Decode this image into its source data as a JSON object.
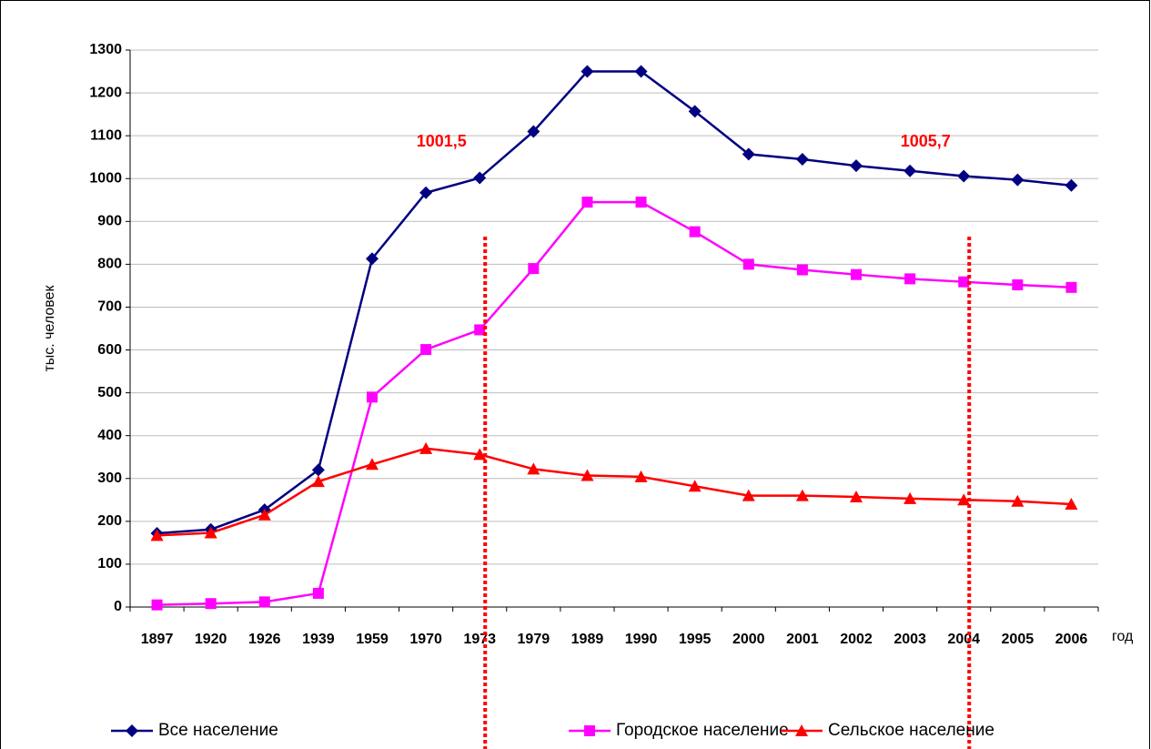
{
  "chart_data": {
    "type": "line",
    "categories": [
      "1897",
      "1920",
      "1926",
      "1939",
      "1959",
      "1970",
      "1973",
      "1979",
      "1989",
      "1990",
      "1995",
      "2000",
      "2001",
      "2002",
      "2003",
      "2004",
      "2005",
      "2006"
    ],
    "series": [
      {
        "name": "Все население",
        "color": "#000080",
        "marker": "diamond",
        "values": [
          172,
          181,
          227,
          320,
          813,
          967,
          1001.5,
          1110,
          1250,
          1250,
          1157,
          1057,
          1045,
          1030,
          1018,
          1005.7,
          997,
          984
        ]
      },
      {
        "name": "Городское население",
        "color": "#ff00ff",
        "marker": "square",
        "values": [
          5,
          8,
          12,
          32,
          490,
          601,
          647,
          790,
          945,
          945,
          876,
          800,
          787,
          776,
          766,
          759,
          752,
          746
        ]
      },
      {
        "name": "Сельское  население",
        "color": "#ff0000",
        "marker": "triangle",
        "values": [
          167,
          173,
          215,
          293,
          333,
          370,
          356,
          322,
          307,
          304,
          282,
          260,
          260,
          257,
          253,
          250,
          247,
          240
        ]
      }
    ],
    "ylim": [
      0,
      1300
    ],
    "yticks": [
      0,
      100,
      200,
      300,
      400,
      500,
      600,
      700,
      800,
      900,
      1000,
      1100,
      1200,
      1300
    ],
    "grid": true,
    "ylabel": "тыс. человек",
    "xlabel": "год",
    "legend": "bottom",
    "annotations": [
      {
        "text": "1001,5",
        "category": 6,
        "color": "#ff0000"
      },
      {
        "text": "1005,7",
        "category": 15,
        "color": "#ff0000"
      }
    ]
  }
}
